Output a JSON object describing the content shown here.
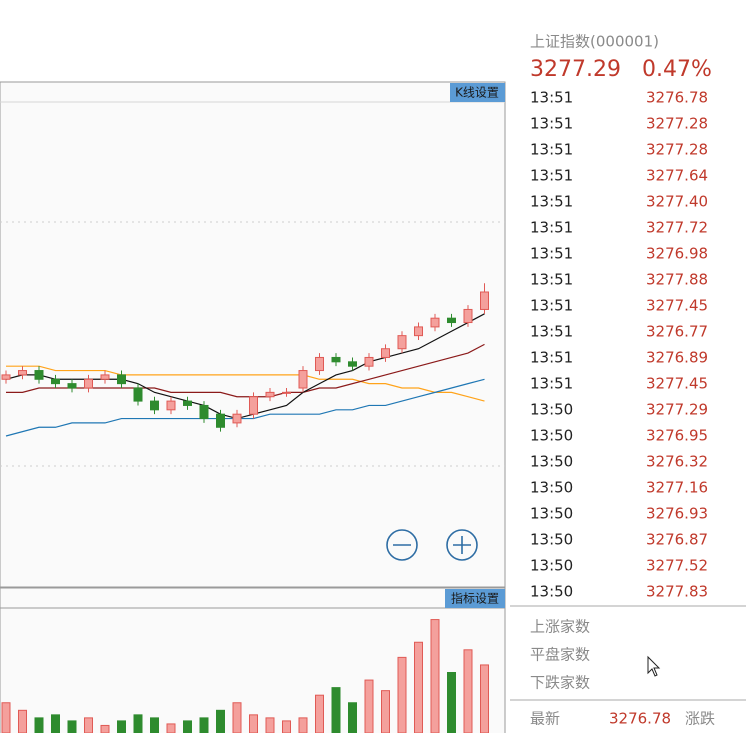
{
  "chart_data": {
    "type": "candlestick",
    "ylim": [
      3200,
      3310
    ],
    "up_color": "#f4a09c",
    "up_stroke": "#e05a55",
    "down_color": "#2e8b2e",
    "open": [
      3246,
      3247,
      3248,
      3246,
      3245,
      3244,
      3246,
      3247,
      3244,
      3241,
      3239,
      3241,
      3240,
      3238,
      3236,
      3238,
      3242,
      3243,
      3244,
      3248,
      3251,
      3250,
      3249,
      3251,
      3253,
      3256,
      3258,
      3260,
      3259,
      3262
    ],
    "close": [
      3247,
      3248,
      3246,
      3245,
      3244,
      3246,
      3247,
      3245,
      3241,
      3239,
      3241,
      3240,
      3237,
      3235,
      3238,
      3242,
      3243,
      3243,
      3248,
      3251,
      3250,
      3249,
      3251,
      3253,
      3256,
      3258,
      3260,
      3259,
      3262,
      3266
    ],
    "high": [
      3248,
      3249,
      3249,
      3247,
      3246,
      3247,
      3248,
      3248,
      3245,
      3242,
      3242,
      3242,
      3241,
      3239,
      3239,
      3243,
      3244,
      3244,
      3249,
      3252,
      3252,
      3251,
      3252,
      3254,
      3257,
      3259,
      3261,
      3261,
      3263,
      3268
    ],
    "low": [
      3245,
      3246,
      3245,
      3244,
      3243,
      3243,
      3245,
      3244,
      3240,
      3238,
      3238,
      3239,
      3236,
      3234,
      3235,
      3237,
      3241,
      3242,
      3243,
      3247,
      3249,
      3248,
      3248,
      3250,
      3252,
      3255,
      3257,
      3258,
      3258,
      3261
    ],
    "series": [
      {
        "color": "#ffa31a",
        "values": [
          3249,
          3249,
          3249,
          3248,
          3248,
          3248,
          3248,
          3247,
          3247,
          3247,
          3247,
          3247,
          3247,
          3247,
          3247,
          3247,
          3247,
          3247,
          3247,
          3246,
          3246,
          3246,
          3245,
          3245,
          3244,
          3244,
          3243,
          3243,
          3242,
          3241
        ]
      },
      {
        "color": "#1f77b4",
        "values": [
          3233,
          3234,
          3235,
          3235,
          3236,
          3236,
          3236,
          3237,
          3237,
          3237,
          3237,
          3237,
          3237,
          3237,
          3237,
          3237,
          3238,
          3238,
          3238,
          3238,
          3239,
          3239,
          3240,
          3240,
          3241,
          3242,
          3243,
          3244,
          3245,
          3246
        ]
      },
      {
        "color": "#8b1a1a",
        "values": [
          3243,
          3243,
          3244,
          3244,
          3244,
          3244,
          3244,
          3244,
          3244,
          3244,
          3243,
          3243,
          3243,
          3243,
          3242,
          3242,
          3242,
          3243,
          3243,
          3244,
          3244,
          3245,
          3246,
          3247,
          3248,
          3249,
          3250,
          3251,
          3252,
          3254
        ]
      },
      {
        "color": "#111111",
        "values": [
          3246,
          3247,
          3247,
          3246,
          3246,
          3246,
          3246,
          3246,
          3245,
          3243,
          3242,
          3241,
          3240,
          3238,
          3237,
          3238,
          3239,
          3240,
          3243,
          3245,
          3247,
          3248,
          3250,
          3251,
          3252,
          3253,
          3255,
          3257,
          3259,
          3261
        ]
      }
    ],
    "volume": {
      "ylim": [
        0,
        80
      ],
      "values": [
        20,
        15,
        10,
        12,
        8,
        10,
        5,
        8,
        12,
        10,
        6,
        8,
        10,
        15,
        20,
        12,
        10,
        8,
        10,
        25,
        30,
        20,
        35,
        28,
        50,
        60,
        75,
        40,
        55,
        45
      ]
    }
  },
  "buttons": {
    "kline": "K线设置",
    "indicator": "指标设置"
  },
  "quote": {
    "name": "上证指数(000001)",
    "price": "3277.29",
    "change": "0.47%"
  },
  "ticks": [
    {
      "time": "13:51",
      "price": "3276.78"
    },
    {
      "time": "13:51",
      "price": "3277.28"
    },
    {
      "time": "13:51",
      "price": "3277.28"
    },
    {
      "time": "13:51",
      "price": "3277.64"
    },
    {
      "time": "13:51",
      "price": "3277.40"
    },
    {
      "time": "13:51",
      "price": "3277.72"
    },
    {
      "time": "13:51",
      "price": "3276.98"
    },
    {
      "time": "13:51",
      "price": "3277.88"
    },
    {
      "time": "13:51",
      "price": "3277.45"
    },
    {
      "time": "13:51",
      "price": "3276.77"
    },
    {
      "time": "13:51",
      "price": "3276.89"
    },
    {
      "time": "13:51",
      "price": "3277.45"
    },
    {
      "time": "13:50",
      "price": "3277.29"
    },
    {
      "time": "13:50",
      "price": "3276.95"
    },
    {
      "time": "13:50",
      "price": "3276.32"
    },
    {
      "time": "13:50",
      "price": "3277.16"
    },
    {
      "time": "13:50",
      "price": "3276.93"
    },
    {
      "time": "13:50",
      "price": "3276.87"
    },
    {
      "time": "13:50",
      "price": "3277.52"
    },
    {
      "time": "13:50",
      "price": "3277.83"
    }
  ],
  "stats": [
    "上涨家数",
    "平盘家数",
    "下跌家数"
  ],
  "last": {
    "label": "最新",
    "price": "3276.78",
    "change_label": "涨跌"
  }
}
